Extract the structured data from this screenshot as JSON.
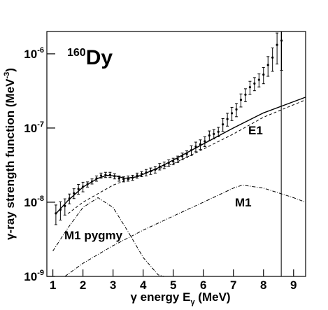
{
  "chart_data": {
    "type": "scatter",
    "title": {
      "mass": "160",
      "element": "Dy"
    },
    "y_label": {
      "text": "γ-ray strength function (MeV",
      "exponent": "-3",
      "close": ")"
    },
    "x_label": {
      "text": "γ energy E",
      "subscript": "γ",
      "close": " (MeV)"
    },
    "annotations": [
      "E1",
      "M1",
      "M1 pygmy"
    ],
    "log_y": true,
    "xlim": [
      0.8,
      9.4
    ],
    "ylim": [
      1e-09,
      2e-06
    ],
    "xticks": [
      1,
      2,
      3,
      4,
      5,
      6,
      7,
      8,
      9
    ],
    "yticks": [
      {
        "value": 1e-09,
        "label": "10",
        "exponent": "-9"
      },
      {
        "value": 1e-08,
        "label": "10",
        "exponent": "-8"
      },
      {
        "value": 1e-07,
        "label": "10",
        "exponent": "-7"
      },
      {
        "value": 1e-06,
        "label": "10",
        "exponent": "-6"
      }
    ],
    "color": "#000000",
    "x": [
      1.1,
      1.25,
      1.4,
      1.55,
      1.7,
      1.85,
      2.0,
      2.15,
      2.3,
      2.45,
      2.6,
      2.75,
      2.9,
      3.05,
      3.2,
      3.35,
      3.5,
      3.65,
      3.8,
      3.95,
      4.1,
      4.25,
      4.4,
      4.55,
      4.7,
      4.85,
      5.0,
      5.15,
      5.3,
      5.45,
      5.6,
      5.75,
      5.9,
      6.05,
      6.2,
      6.35,
      6.5,
      6.65,
      6.8,
      6.95,
      7.1,
      7.25,
      7.4,
      7.55,
      7.7,
      7.85,
      8.0,
      8.15,
      8.3,
      8.45,
      8.6
    ],
    "values": [
      7.08e-09,
      7.94e-09,
      8.91e-09,
      1.12e-08,
      1.32e-08,
      1.51e-08,
      1.62e-08,
      1.74e-08,
      1.91e-08,
      2.09e-08,
      2.29e-08,
      2.34e-08,
      2.34e-08,
      2.24e-08,
      2.09e-08,
      2.04e-08,
      2.09e-08,
      2.14e-08,
      2.29e-08,
      2.4e-08,
      2.51e-08,
      2.63e-08,
      2.75e-08,
      3.02e-08,
      3.16e-08,
      3.39e-08,
      3.55e-08,
      3.8e-08,
      4.17e-08,
      4.47e-08,
      5.01e-08,
      5.62e-08,
      6.03e-08,
      6.61e-08,
      7.94e-08,
      8.32e-08,
      8.91e-08,
      1.12e-07,
      1.32e-07,
      1.58e-07,
      1.78e-07,
      2.4e-07,
      2.82e-07,
      3.55e-07,
      3.98e-07,
      4.47e-07,
      5.25e-07,
      7.08e-07,
      8.91e-07,
      1.32e-06,
      1.51e-06
    ],
    "errors": [
      2.1e-09,
      2.2e-09,
      2.2e-09,
      1.7e-09,
      2e-09,
      2.3e-09,
      2.4e-09,
      1.4e-09,
      1.5e-09,
      1.7e-09,
      1.8e-09,
      1.9e-09,
      1.9e-09,
      1.8e-09,
      1.7e-09,
      1.6e-09,
      1.7e-09,
      1.7e-09,
      1.8e-09,
      1.9e-09,
      2.5e-09,
      2.6e-09,
      2.8e-09,
      3e-09,
      3.2e-09,
      3.4e-09,
      3.6e-09,
      3.8e-09,
      4.2e-09,
      4.5e-09,
      7.5e-09,
      8.4e-09,
      9e-09,
      1e-08,
      1.2e-08,
      1.2e-08,
      1.3e-08,
      2.2e-08,
      2.6e-08,
      3.2e-08,
      3.6e-08,
      4.8e-08,
      5.6e-08,
      7.1e-08,
      8e-08,
      8.9e-08,
      1.3e-07,
      2.1e-07,
      3.1e-07,
      5.9e-07,
      9.1e-07
    ],
    "curves": [
      {
        "dash": "solid",
        "x": [
          1.1,
          1.5,
          2.0,
          2.5,
          2.8,
          3.1,
          3.4,
          3.8,
          4.5,
          5,
          6,
          7,
          8,
          9.4
        ],
        "values": [
          7e-09,
          1.05e-08,
          1.6e-08,
          2.1e-08,
          2.3e-08,
          2.25e-08,
          2.1e-08,
          2.2e-08,
          2.9e-08,
          3.7e-08,
          6.1e-08,
          1e-07,
          1.6e-07,
          2.6e-07
        ]
      },
      {
        "dash": "dashed",
        "x": [
          1.5,
          2,
          3,
          4,
          5,
          6,
          7,
          8,
          9.4
        ],
        "values": [
          7e-09,
          1e-08,
          1.7e-08,
          2.4e-08,
          3.3e-08,
          5.2e-08,
          8.3e-08,
          1.4e-07,
          2.4e-07
        ]
      },
      {
        "dash": "dashdot",
        "x": [
          1.4,
          2,
          3,
          4,
          5,
          6,
          7,
          7.3,
          8,
          9,
          9.4
        ],
        "values": [
          1e-09,
          1.5e-09,
          2.6e-09,
          4.2e-09,
          6.5e-09,
          1e-08,
          1.55e-08,
          1.7e-08,
          1.55e-08,
          1.15e-08,
          1e-08
        ]
      },
      {
        "dash": "dashdot",
        "x": [
          1,
          1.5,
          2,
          2.5,
          3,
          3.5,
          4,
          4.5,
          4.7
        ],
        "values": [
          2.2e-09,
          4.5e-09,
          8.5e-09,
          1.15e-08,
          8.5e-09,
          4e-09,
          1.8e-09,
          1.05e-09,
          1e-09
        ]
      }
    ],
    "vline": 8.59
  }
}
